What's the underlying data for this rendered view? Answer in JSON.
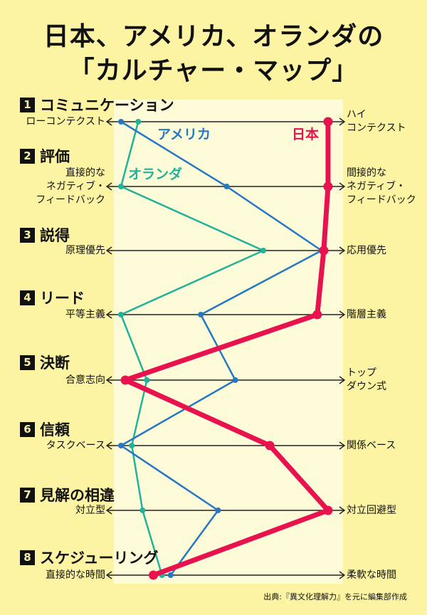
{
  "title_line1": "日本、アメリカ、オランダの",
  "title_line2": "「カルチャー・マップ」",
  "source": "出典:『異文化理解力』を元に編集部作成",
  "colors": {
    "japan": "#e8124f",
    "usa": "#2478c4",
    "netherlands": "#21b39a"
  },
  "chart_data": {
    "type": "line",
    "dimensions": [
      {
        "num": "1",
        "title": "コミュニケーション",
        "left": "ローコンテクスト",
        "right": "ハイ\nコンテクスト"
      },
      {
        "num": "2",
        "title": "評価",
        "left": "直接的な\nネガティブ・\nフィードバック",
        "right": "間接的な\nネガティブ・\nフィードバック"
      },
      {
        "num": "3",
        "title": "説得",
        "left": "原理優先",
        "right": "応用優先"
      },
      {
        "num": "4",
        "title": "リード",
        "left": "平等主義",
        "right": "階層主義"
      },
      {
        "num": "5",
        "title": "決断",
        "left": "合意志向",
        "right": "トップ\nダウン式"
      },
      {
        "num": "6",
        "title": "信頼",
        "left": "タスクベース",
        "right": "関係ベース"
      },
      {
        "num": "7",
        "title": "見解の相違",
        "left": "対立型",
        "right": "対立回避型"
      },
      {
        "num": "8",
        "title": "スケジューリング",
        "left": "直接的な時間",
        "right": "柔軟な時間"
      }
    ],
    "xlim": [
      0,
      100
    ],
    "series": [
      {
        "name": "日本",
        "key": "japan",
        "values": [
          98,
          98,
          96,
          93,
          4,
          71,
          98,
          17
        ]
      },
      {
        "name": "アメリカ",
        "key": "usa",
        "values": [
          2,
          51,
          95,
          39,
          55,
          2,
          47,
          25
        ]
      },
      {
        "name": "オランダ",
        "key": "netherlands",
        "values": [
          10,
          2,
          68,
          2,
          14,
          7,
          12,
          21
        ]
      }
    ]
  }
}
